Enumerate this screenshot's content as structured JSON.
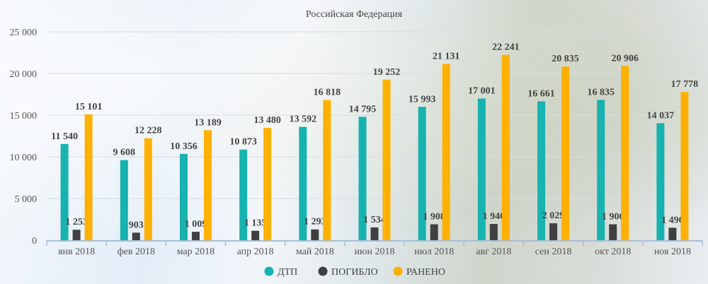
{
  "chart_data": {
    "type": "bar",
    "title": "Российская Федерация",
    "categories": [
      "янв 2018",
      "фев 2018",
      "мар 2018",
      "апр 2018",
      "май 2018",
      "июн 2018",
      "июл 2018",
      "авг 2018",
      "сен 2018",
      "окт 2018",
      "ноя 2018"
    ],
    "series": [
      {
        "name": "ДТП",
        "color": "#17b3b0",
        "values": [
          11540,
          9608,
          10356,
          10873,
          13592,
          14795,
          15993,
          17001,
          16661,
          16835,
          14037
        ]
      },
      {
        "name": "ПОГИБЛО",
        "color": "#404040",
        "values": [
          1253,
          903,
          1009,
          1135,
          1293,
          1534,
          1908,
          1946,
          2029,
          1906,
          1496
        ]
      },
      {
        "name": "РАНЕНО",
        "color": "#ffb000",
        "values": [
          15101,
          12228,
          13189,
          13480,
          16818,
          19252,
          21131,
          22241,
          20835,
          20906,
          17778
        ]
      }
    ],
    "ylim": [
      0,
      25000
    ],
    "yticks": [
      0,
      5000,
      10000,
      15000,
      20000,
      25000
    ],
    "ytick_labels": [
      "0",
      "5 000",
      "10 000",
      "15 000",
      "20 000",
      "25 000"
    ],
    "data_labels": [
      [
        "11 540",
        "9 608",
        "10 356",
        "10 873",
        "13 592",
        "14 795",
        "15 993",
        "17 001",
        "16 661",
        "16 835",
        "14 037"
      ],
      [
        "1 253",
        "903",
        "1 009",
        "1 135",
        "1 293",
        "1 534",
        "1 908",
        "1 946",
        "2 029",
        "1 906",
        "1 496"
      ],
      [
        "15 101",
        "12 228",
        "13 189",
        "13 480",
        "16 818",
        "19 252",
        "21 131",
        "22 241",
        "20 835",
        "20 906",
        "17 778"
      ]
    ],
    "grid": true,
    "legend": "bottom"
  }
}
